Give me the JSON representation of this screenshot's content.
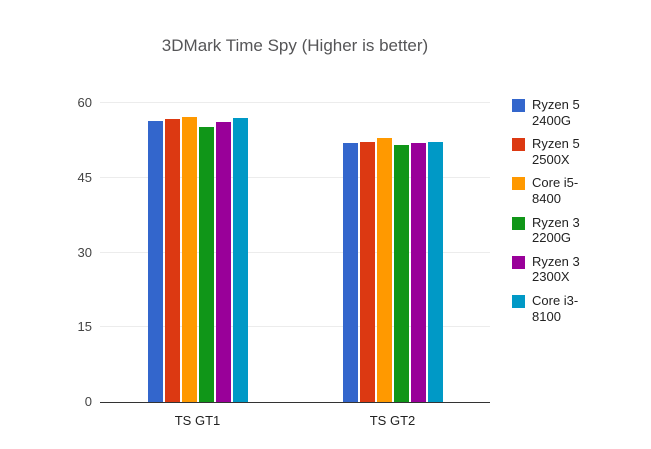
{
  "chart_data": {
    "type": "bar",
    "title": "3DMark Time Spy (Higher is better)",
    "categories": [
      "TS GT1",
      "TS GT2"
    ],
    "series": [
      {
        "name": "Ryzen 5 2400G",
        "color": "#3366cc",
        "values": [
          56.3,
          51.9
        ]
      },
      {
        "name": "Ryzen 5 2500X",
        "color": "#dc3912",
        "values": [
          56.8,
          52.1
        ]
      },
      {
        "name": "Core i5-8400",
        "color": "#ff9900",
        "values": [
          57.1,
          53.0
        ]
      },
      {
        "name": "Ryzen 3 2200G",
        "color": "#109618",
        "values": [
          55.2,
          51.6
        ]
      },
      {
        "name": "Ryzen 3 2300X",
        "color": "#990099",
        "values": [
          56.2,
          51.9
        ]
      },
      {
        "name": "Core i3-8100",
        "color": "#0099c6",
        "values": [
          56.9,
          52.2
        ]
      }
    ],
    "xlabel": "",
    "ylabel": "",
    "ylim": [
      0,
      60
    ],
    "yticks": [
      0,
      15,
      30,
      45,
      60
    ],
    "grid": true,
    "legend_position": "right",
    "baseline_color": "#333333",
    "gridline_color": "#ececec"
  }
}
